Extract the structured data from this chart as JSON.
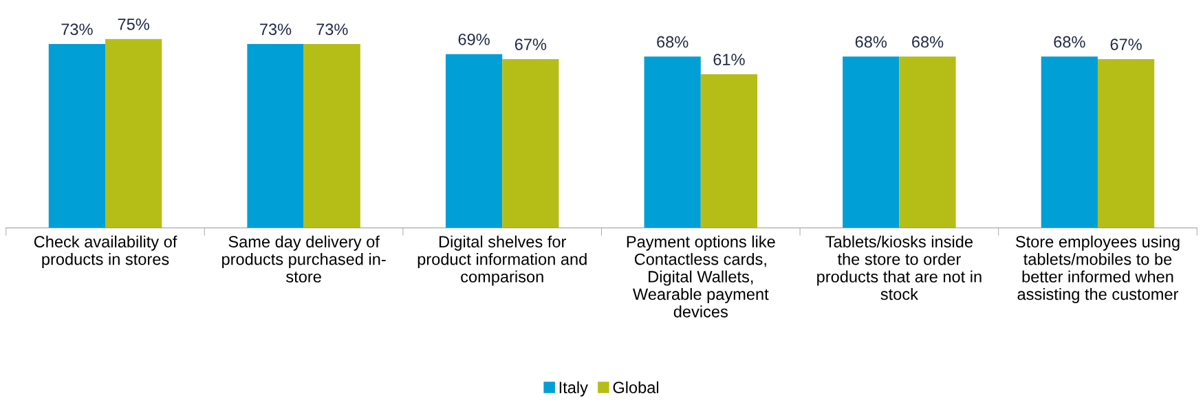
{
  "chart_data": {
    "type": "bar",
    "categories": [
      "Check availability of\nproducts in stores",
      "Same day delivery of\nproducts purchased in-\nstore",
      "Digital shelves for\nproduct information and\ncomparison",
      "Payment options like\nContactless cards,\nDigital Wallets,\nWearable payment\ndevices",
      "Tablets/kiosks inside\nthe store to order\nproducts that are not in\nstock",
      "Store employees using\ntablets/mobiles to be\nbetter informed when\nassisting the customer"
    ],
    "series": [
      {
        "name": "Italy",
        "color": "#009fd6",
        "values": [
          73,
          73,
          69,
          68,
          68,
          68
        ],
        "value_labels": [
          "73%",
          "73%",
          "69%",
          "68%",
          "68%",
          "68%"
        ]
      },
      {
        "name": "Global",
        "color": "#b5be16",
        "values": [
          75,
          73,
          67,
          61,
          68,
          67
        ],
        "value_labels": [
          "75%",
          "73%",
          "67%",
          "61%",
          "68%",
          "67%"
        ]
      }
    ],
    "legend": "bottom",
    "tick_labels": "x"
  }
}
